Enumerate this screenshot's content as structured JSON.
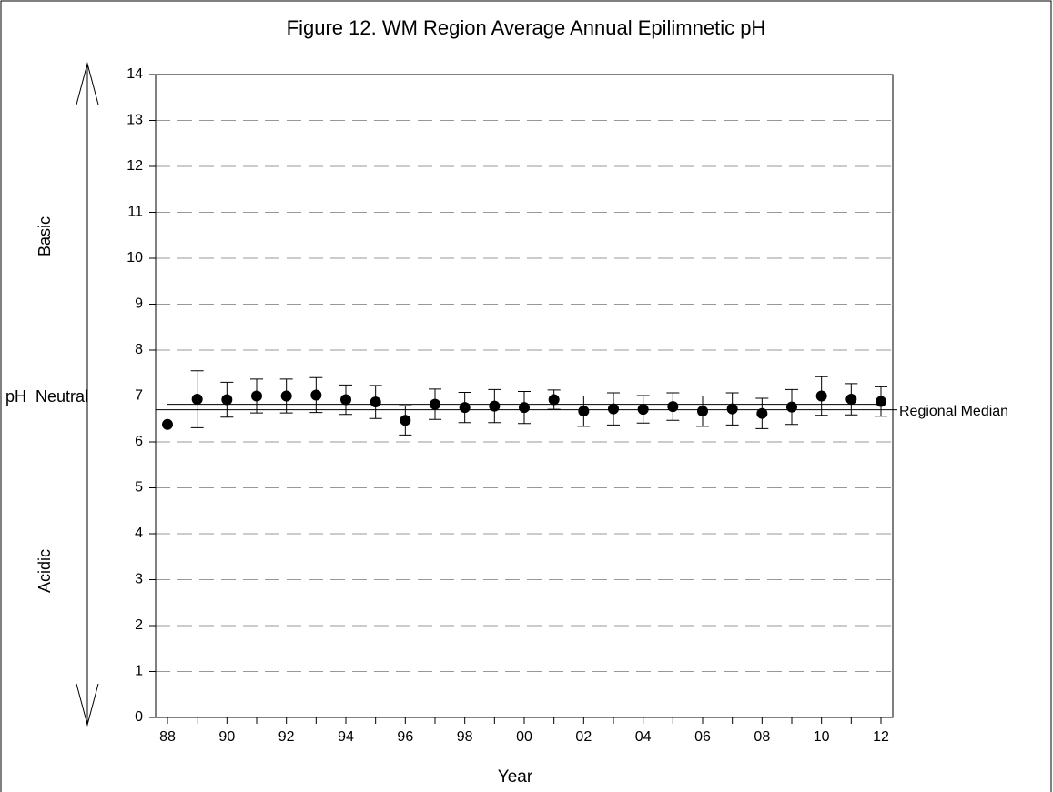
{
  "chart_data": {
    "type": "scatter",
    "title": "Figure 12. WM Region Average Annual Epilimnetic pH",
    "x_label": "Year",
    "categories": [
      "88",
      null,
      "90",
      null,
      "92",
      null,
      "94",
      null,
      "96",
      null,
      "98",
      null,
      "00",
      null,
      "02",
      null,
      "04",
      null,
      "06",
      null,
      "08",
      null,
      "10",
      null,
      "12"
    ],
    "values": [
      6.38,
      6.93,
      6.92,
      7.0,
      7.0,
      7.02,
      6.92,
      6.87,
      6.47,
      6.82,
      6.75,
      6.78,
      6.75,
      6.92,
      6.67,
      6.72,
      6.71,
      6.77,
      6.67,
      6.72,
      6.62,
      6.76,
      7.0,
      6.93,
      6.88
    ],
    "errors": [
      null,
      0.62,
      0.38,
      0.37,
      0.37,
      0.38,
      0.32,
      0.36,
      0.32,
      0.33,
      0.33,
      0.36,
      0.35,
      0.21,
      0.33,
      0.35,
      0.3,
      0.3,
      0.33,
      0.35,
      0.33,
      0.38,
      0.42,
      0.34,
      0.32
    ],
    "color": "#000000",
    "ylim": [
      0,
      14
    ],
    "yticks": [
      0,
      1,
      2,
      3,
      4,
      5,
      6,
      7,
      8,
      9,
      10,
      11,
      12,
      13,
      14
    ],
    "grid": true,
    "reference_lines": [
      {
        "value": 6.82
      },
      {
        "value": 6.7,
        "label": "Regional Median"
      }
    ],
    "annotations": [
      "Basic",
      "Acidic",
      "pH  Neutral"
    ]
  }
}
